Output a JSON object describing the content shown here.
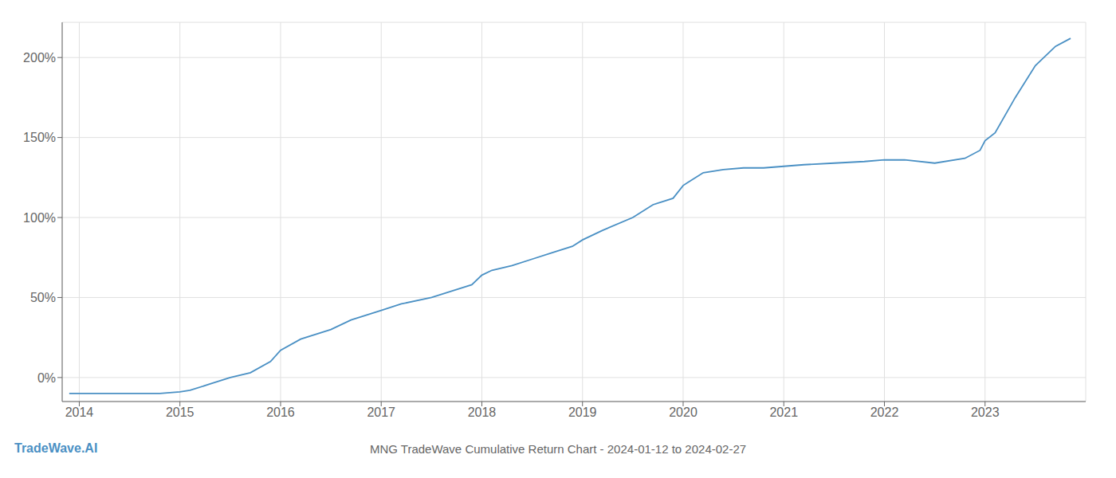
{
  "chart_data": {
    "type": "line",
    "title": "MNG TradeWave Cumulative Return Chart - 2024-01-12 to 2024-02-27",
    "annotations": [
      "TradeWave.AI"
    ],
    "color": "#4a90c4",
    "grid": true,
    "x": [
      2013.9,
      2014.0,
      2014.2,
      2014.4,
      2014.6,
      2014.8,
      2015.0,
      2015.05,
      2015.1,
      2015.3,
      2015.5,
      2015.7,
      2015.9,
      2016.0,
      2016.2,
      2016.5,
      2016.7,
      2016.9,
      2017.0,
      2017.2,
      2017.5,
      2017.7,
      2017.9,
      2018.0,
      2018.1,
      2018.3,
      2018.5,
      2018.7,
      2018.9,
      2019.0,
      2019.2,
      2019.5,
      2019.7,
      2019.9,
      2020.0,
      2020.05,
      2020.2,
      2020.4,
      2020.6,
      2020.8,
      2021.0,
      2021.2,
      2021.5,
      2021.8,
      2022.0,
      2022.2,
      2022.5,
      2022.8,
      2022.95,
      2023.0,
      2023.1,
      2023.3,
      2023.5,
      2023.7,
      2023.85
    ],
    "values": [
      -10,
      -10,
      -10,
      -10,
      -10,
      -10,
      -9,
      -8.5,
      -8,
      -4,
      0,
      3,
      10,
      17,
      24,
      30,
      36,
      40,
      42,
      46,
      50,
      54,
      58,
      64,
      67,
      70,
      74,
      78,
      82,
      86,
      92,
      100,
      108,
      112,
      120,
      122,
      128,
      130,
      131,
      131,
      132,
      133,
      134,
      135,
      136,
      136,
      134,
      137,
      142,
      148,
      153,
      175,
      195,
      207,
      212
    ],
    "xlim": [
      2013.83,
      2024.0
    ],
    "ylim": [
      -15,
      222
    ],
    "xticks": [
      2014,
      2015,
      2016,
      2017,
      2018,
      2019,
      2020,
      2021,
      2022,
      2023
    ],
    "yticks": [
      {
        "value": 0,
        "label": "0%"
      },
      {
        "value": 50,
        "label": "50%"
      },
      {
        "value": 100,
        "label": "100%"
      },
      {
        "value": 150,
        "label": "150%"
      },
      {
        "value": 200,
        "label": "200%"
      }
    ]
  }
}
